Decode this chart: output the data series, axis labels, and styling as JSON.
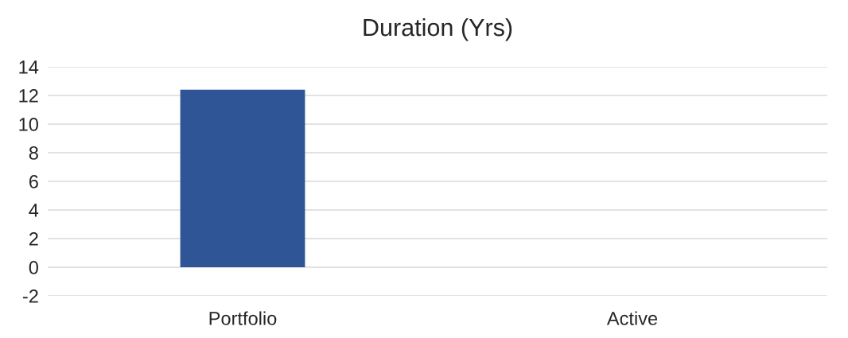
{
  "chart_data": {
    "type": "bar",
    "title": "Duration (Yrs)",
    "categories": [
      "Portfolio",
      "Active"
    ],
    "values": [
      12.4,
      null
    ],
    "color": "#2f5597",
    "ylim": [
      -2,
      14
    ],
    "yticks": [
      -2,
      0,
      2,
      4,
      6,
      8,
      10,
      12,
      14
    ],
    "grid": "y"
  }
}
